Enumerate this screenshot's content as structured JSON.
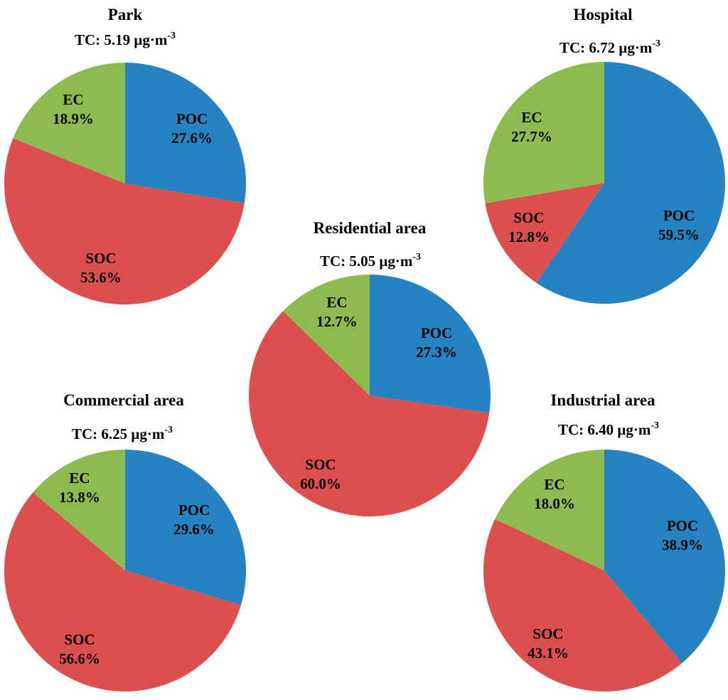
{
  "colors": {
    "POC": "#2682c1",
    "SOC": "#dc4f4f",
    "EC": "#8dbb50"
  },
  "chart_data": [
    {
      "type": "pie",
      "title": "Park",
      "tc_prefix": "TC: 5.19 μg·m",
      "tc_exponent": "-3",
      "slices": [
        {
          "name": "POC",
          "value": 27.6,
          "label": "27.6%"
        },
        {
          "name": "SOC",
          "value": 53.6,
          "label": "53.6%"
        },
        {
          "name": "EC",
          "value": 18.9,
          "label": "18.9%"
        }
      ]
    },
    {
      "type": "pie",
      "title": "Hospital",
      "tc_prefix": "TC: 6.72 μg·m",
      "tc_exponent": "-3",
      "slices": [
        {
          "name": "POC",
          "value": 59.5,
          "label": "59.5%"
        },
        {
          "name": "SOC",
          "value": 12.8,
          "label": "12.8%"
        },
        {
          "name": "EC",
          "value": 27.7,
          "label": "27.7%"
        }
      ]
    },
    {
      "type": "pie",
      "title": "Residential area",
      "tc_prefix": "TC: 5.05 μg·m",
      "tc_exponent": "-3",
      "slices": [
        {
          "name": "POC",
          "value": 27.3,
          "label": "27.3%"
        },
        {
          "name": "SOC",
          "value": 60.0,
          "label": "60.0%"
        },
        {
          "name": "EC",
          "value": 12.7,
          "label": "12.7%"
        }
      ]
    },
    {
      "type": "pie",
      "title": "Commercial area",
      "tc_prefix": "TC:  6.25 μg·m",
      "tc_exponent": "-3",
      "slices": [
        {
          "name": "POC",
          "value": 29.6,
          "label": "29.6%"
        },
        {
          "name": "SOC",
          "value": 56.6,
          "label": "56.6%"
        },
        {
          "name": "EC",
          "value": 13.8,
          "label": "13.8%"
        }
      ]
    },
    {
      "type": "pie",
      "title": "Industrial area",
      "tc_prefix": "TC:  6.40 μg·m",
      "tc_exponent": "-3",
      "slices": [
        {
          "name": "POC",
          "value": 38.9,
          "label": "38.9%"
        },
        {
          "name": "SOC",
          "value": 43.1,
          "label": "43.1%"
        },
        {
          "name": "EC",
          "value": 18.0,
          "label": "18.0%"
        }
      ]
    }
  ]
}
